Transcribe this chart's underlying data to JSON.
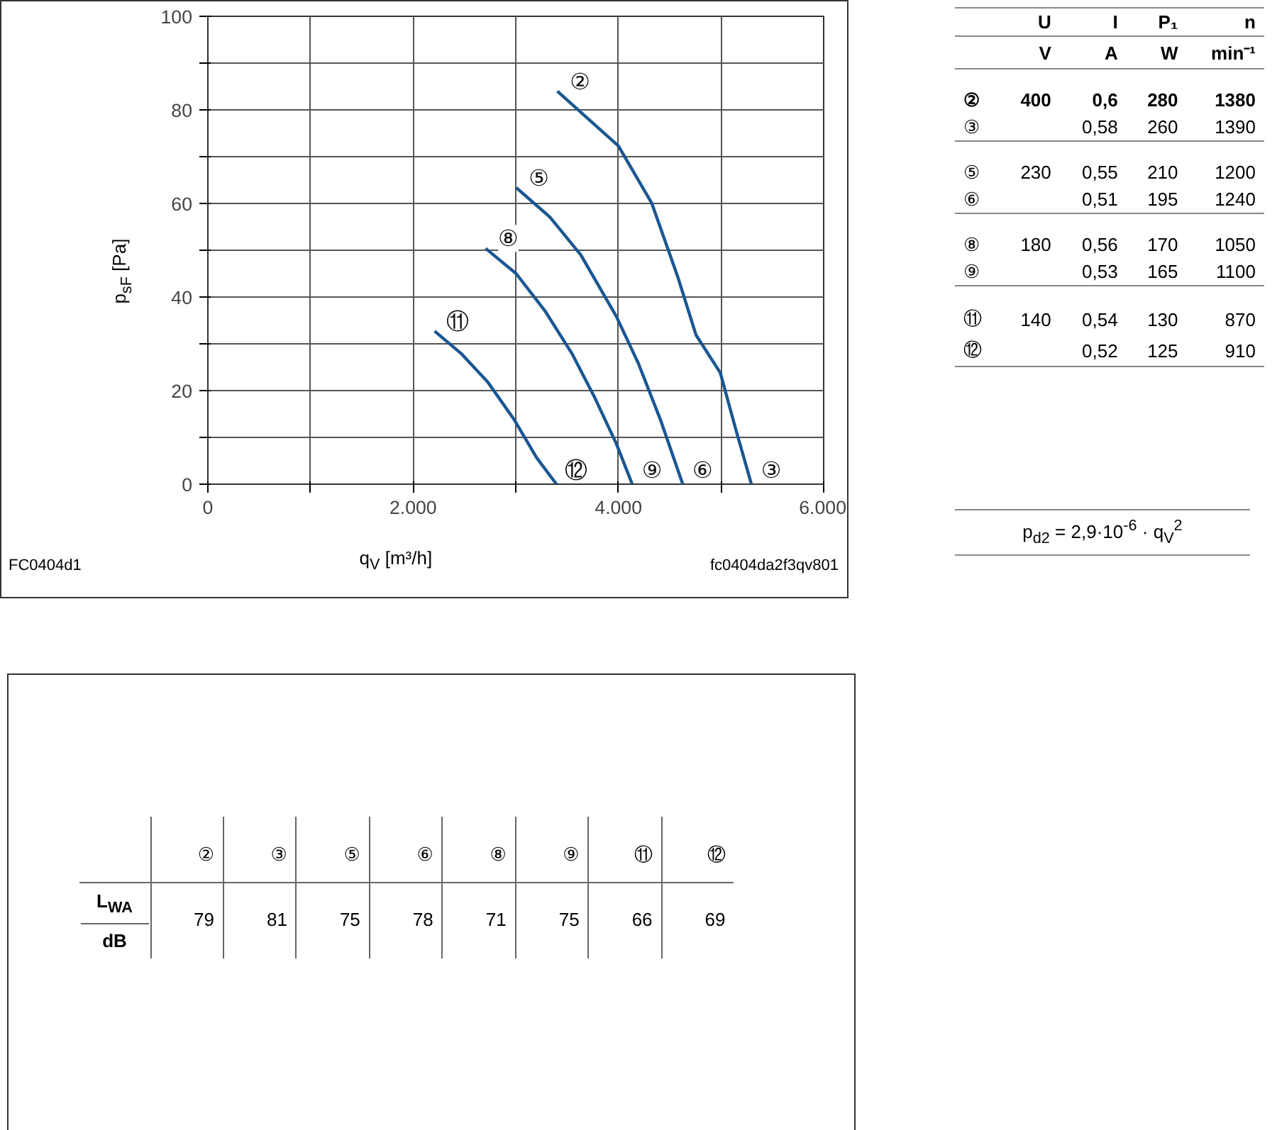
{
  "chart_data": {
    "type": "line",
    "xlabel": "q$_{V}$ [m³/h]",
    "ylabel": "p$_{sF}$ [Pa]",
    "xlim": [
      0,
      6000
    ],
    "ylim": [
      0,
      100
    ],
    "xticks": [
      0,
      {
        "value": 1000,
        "label": null
      },
      {
        "value": 2000,
        "label": "2.000"
      },
      {
        "value": 3000,
        "label": null
      },
      {
        "value": 4000,
        "label": "4.000"
      },
      {
        "value": 5000,
        "label": null
      },
      {
        "value": 6000,
        "label": "6.000"
      }
    ],
    "yticks": [
      0,
      {
        "value": 10,
        "label": null
      },
      20,
      {
        "value": 30,
        "label": null
      },
      40,
      {
        "value": 50,
        "label": null
      },
      60,
      {
        "value": 70,
        "label": null
      },
      80,
      {
        "value": 90,
        "label": null
      },
      100
    ],
    "grid": true,
    "line_style": "solid",
    "marker": "none",
    "series": [
      {
        "color": "#1a5792",
        "x": [
          3405,
          4000,
          4324,
          4583,
          4756,
          4993,
          5144,
          5296
        ],
        "values": [
          84,
          72.3,
          60.1,
          44,
          31.9,
          23.8,
          11.7,
          0
        ]
      },
      {
        "color": "#1a5792",
        "x": [
          3004,
          3332,
          3634,
          3979,
          4195,
          4411,
          4627
        ],
        "values": [
          63.4,
          57.1,
          49,
          35.9,
          25.8,
          13.7,
          0
        ]
      },
      {
        "color": "#1a5792",
        "x": [
          2706,
          3004,
          3289,
          3548,
          3763,
          3979,
          4135
        ],
        "values": [
          50.4,
          45,
          36.9,
          27.9,
          18.8,
          8.7,
          0
        ]
      },
      {
        "color": "#1a5792",
        "x": [
          2210,
          2469,
          2728,
          2987,
          3202,
          3397
        ],
        "values": [
          32.7,
          27.9,
          21.8,
          13.7,
          5.7,
          0
        ]
      }
    ],
    "annotations": [
      {
        "text": "②",
        "x": 3405,
        "y": 84
      },
      {
        "text": "③",
        "x": 5296,
        "y": 0
      },
      {
        "text": "⑤",
        "x": 3004,
        "y": 63.4
      },
      {
        "text": "⑥",
        "x": 4627,
        "y": 0
      },
      {
        "text": "⑧",
        "x": 2706,
        "y": 50.4
      },
      {
        "text": "⑨",
        "x": 4135,
        "y": 0
      },
      {
        "text": "⑪",
        "x": 2210,
        "y": 32.7
      },
      {
        "text": "⑫",
        "x": 3397,
        "y": 0
      },
      "FC0404d1",
      "fc0404da2f3qv801",
      "\tU\tI\tP₁\tn",
      "\tV\tA\tW\tmin⁻¹",
      "②\t400\t0,6\t280\t1380",
      "③\t\t0,58\t260\t1390",
      "⑤\t230\t0,55\t210\t1200",
      "⑥\t\t0,51\t195\t1240",
      "⑧\t180\t0,56\t170\t1050",
      "⑨\t\t0,53\t165\t1100",
      "⑪\t140\t0,54\t130\t870",
      "⑫\t\t0,52\t125\t910",
      "p$_{d2}$ = 2,9·10$^{-6}$ · q$_{V}$$^{2}$",
      "\t②\t③\t⑤\t⑥\t⑧\t⑨\t⑪\t⑫",
      "\t79\t81\t75\t78\t71\t75\t66\t69",
      "L$_{WA}$",
      "dB"
    ]
  }
}
